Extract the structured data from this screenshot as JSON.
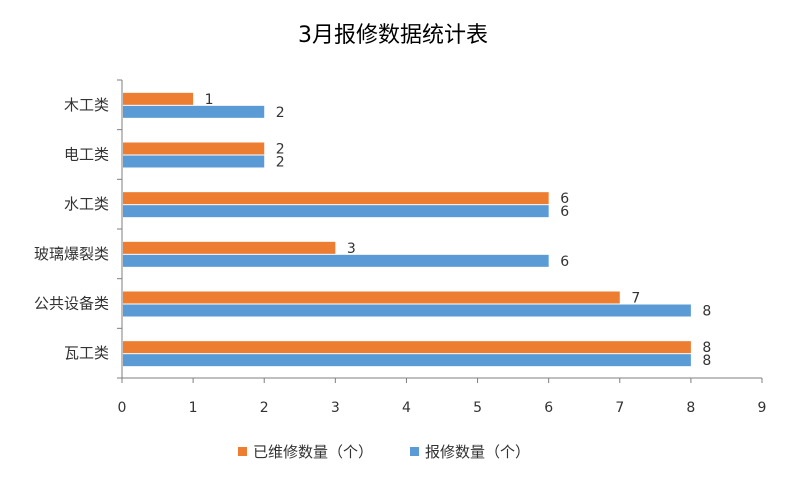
{
  "chart_data": {
    "type": "bar",
    "orientation": "horizontal",
    "title": "3月报修数据统计表",
    "categories": [
      "木工类",
      "电工类",
      "水工类",
      "玻璃爆裂类",
      "公共设备类",
      "瓦工类"
    ],
    "series": [
      {
        "name": "已维修数量（个）",
        "values": [
          1,
          2,
          6,
          3,
          7,
          8
        ],
        "color": "#ED7D31"
      },
      {
        "name": "报修数量（个）",
        "values": [
          2,
          2,
          6,
          6,
          8,
          8
        ],
        "color": "#5B9BD5"
      }
    ],
    "xlim": [
      0,
      9
    ],
    "x_ticks": [
      0,
      1,
      2,
      3,
      4,
      5,
      6,
      7,
      8,
      9
    ],
    "grid": false,
    "legend_position": "bottom",
    "data_labels": true
  }
}
